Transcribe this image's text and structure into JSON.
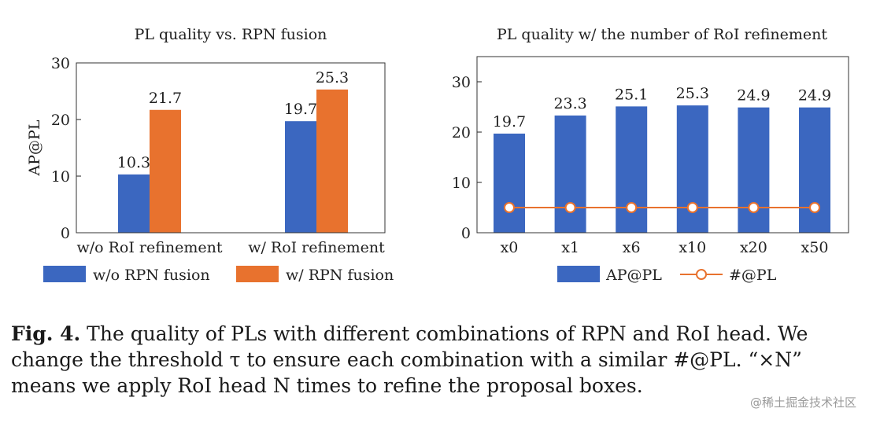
{
  "chart_data": [
    {
      "type": "bar",
      "title": "PL quality vs. RPN fusion",
      "ylabel": "AP@PL",
      "xlabel": "",
      "ylim": [
        0,
        30
      ],
      "yticks": [
        0,
        10,
        20,
        30
      ],
      "categories": [
        "w/o RoI refinement",
        "w/ RoI refinement"
      ],
      "series": [
        {
          "name": "w/o RPN fusion",
          "values": [
            10.3,
            19.7
          ],
          "labels": [
            "10.3",
            "19.7"
          ],
          "color": "#3b67c0"
        },
        {
          "name": "w/ RPN fusion",
          "values": [
            21.7,
            25.3
          ],
          "labels": [
            "21.7",
            "25.3"
          ],
          "color": "#e8722e"
        }
      ],
      "legend_position": "bottom"
    },
    {
      "type": "bar",
      "title": "PL quality w/ the number of RoI refinement",
      "ylabel": "",
      "xlabel": "",
      "ylim": [
        0,
        35
      ],
      "yticks": [
        0,
        10,
        20,
        30
      ],
      "categories": [
        "x0",
        "x1",
        "x6",
        "x10",
        "x20",
        "x50"
      ],
      "series": [
        {
          "name": "AP@PL",
          "type": "bar",
          "values": [
            19.7,
            23.3,
            25.1,
            25.3,
            24.9,
            24.9
          ],
          "labels": [
            "19.7",
            "23.3",
            "25.1",
            "25.3",
            "24.9",
            "24.9"
          ],
          "color": "#3b67c0"
        },
        {
          "name": "#@PL",
          "type": "line",
          "values": [
            5,
            5,
            5,
            5,
            5,
            5
          ],
          "color": "#e8722e"
        }
      ],
      "legend_position": "bottom"
    }
  ],
  "caption": {
    "label": "Fig. 4.",
    "text": " The quality of PLs with different combinations of RPN and RoI head. We change the threshold τ to ensure each combination with a similar #@PL. “×N” means we apply RoI head N times to refine the proposal boxes."
  },
  "watermark": "@稀土掘金技术社区"
}
